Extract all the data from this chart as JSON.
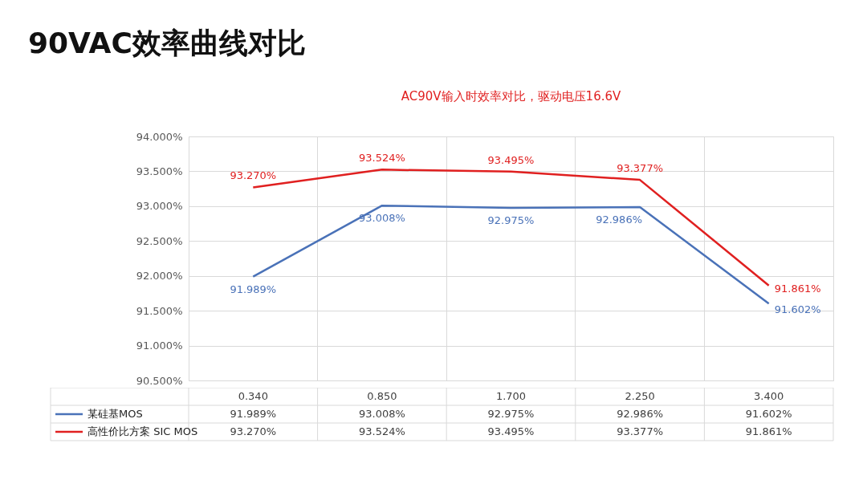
{
  "chart_data": {
    "type": "line",
    "title": "90VAC效率曲线对比",
    "subtitle": "AC90V输入时效率对比，驱动电压16.6V",
    "categories": [
      "0.340",
      "0.850",
      "1.700",
      "2.250",
      "3.400"
    ],
    "series": [
      {
        "name": "某硅基MOS",
        "color": "#4a72b8",
        "values": [
          91.989,
          93.008,
          92.975,
          92.986,
          91.602
        ],
        "value_labels": [
          "91.989%",
          "93.008%",
          "92.975%",
          "92.986%",
          "91.602%"
        ]
      },
      {
        "name": "高性价比方案 SIC MOS",
        "color": "#e02020",
        "values": [
          93.27,
          93.524,
          93.495,
          93.377,
          91.861
        ],
        "value_labels": [
          "93.270%",
          "93.524%",
          "93.495%",
          "93.377%",
          "91.861%"
        ]
      }
    ],
    "ylim": [
      90.5,
      94
    ],
    "yticks": [
      {
        "value": 90.5,
        "label": "90.500%"
      },
      {
        "value": 91,
        "label": "91.000%"
      },
      {
        "value": 91.5,
        "label": "91.500%"
      },
      {
        "value": 92,
        "label": "92.000%"
      },
      {
        "value": 92.5,
        "label": "92.500%"
      },
      {
        "value": 93,
        "label": "93.000%"
      },
      {
        "value": 93.5,
        "label": "93.500%"
      },
      {
        "value": 94,
        "label": "94.000%"
      }
    ],
    "grid": true,
    "legend": "bottom"
  }
}
